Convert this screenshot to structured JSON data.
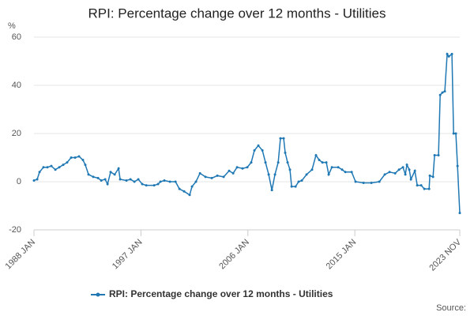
{
  "chart_data": {
    "type": "line",
    "title": "RPI: Percentage change over 12 months - Utilities",
    "y_label": "%",
    "source": "Source:",
    "x": [
      1988.0,
      1988.27,
      1988.47,
      1988.8,
      1989.13,
      1989.46,
      1989.8,
      1990.13,
      1990.46,
      1990.79,
      1991.13,
      1991.46,
      1991.79,
      1992.12,
      1992.32,
      1992.59,
      1992.99,
      1993.39,
      1993.66,
      1993.99,
      1994.19,
      1994.45,
      1994.79,
      1995.12,
      1995.25,
      1995.78,
      1996.12,
      1996.45,
      1996.78,
      1997.11,
      1997.45,
      1998.11,
      1998.44,
      1998.64,
      1998.97,
      1999.44,
      1999.91,
      2000.24,
      2000.63,
      2001.1,
      2001.3,
      2001.63,
      2001.97,
      2002.43,
      2002.96,
      2003.43,
      2003.96,
      2004.42,
      2004.76,
      2005.09,
      2005.55,
      2005.95,
      2006.28,
      2006.55,
      2006.88,
      2007.22,
      2007.48,
      2007.75,
      2008.02,
      2008.28,
      2008.55,
      2008.74,
      2009.01,
      2009.14,
      2009.34,
      2009.54,
      2009.68,
      2010.01,
      2010.27,
      2010.54,
      2010.94,
      2011.4,
      2011.73,
      2012.0,
      2012.27,
      2012.6,
      2012.8,
      2013.07,
      2013.6,
      2013.93,
      2014.2,
      2014.73,
      2015.06,
      2015.73,
      2016.39,
      2017.06,
      2017.52,
      2017.92,
      2018.39,
      2018.72,
      2019.05,
      2019.25,
      2019.38,
      2019.58,
      2019.72,
      2020.05,
      2020.25,
      2020.58,
      2020.85,
      2021.25,
      2021.31,
      2021.58,
      2021.71,
      2022.04,
      2022.18,
      2022.37,
      2022.57,
      2022.77,
      2022.91,
      2023.17,
      2023.31,
      2023.5,
      2023.64,
      2023.83
    ],
    "series": [
      {
        "name": "RPI: Percentage change over 12 months - Utilities",
        "color": "#1f78b4",
        "values": [
          0.5,
          1,
          4,
          6,
          6,
          6.5,
          5,
          6,
          7,
          8,
          10,
          10,
          10.5,
          9,
          7,
          3,
          2,
          1.5,
          0.5,
          1,
          -1,
          4,
          3,
          5.5,
          1,
          0.5,
          1,
          0,
          1,
          -1,
          -1.5,
          -1.5,
          -1,
          0,
          0.5,
          0,
          0,
          -3,
          -4,
          -5.5,
          -2,
          0,
          3.5,
          2,
          1.5,
          2.5,
          2,
          4.5,
          3.5,
          6,
          5.5,
          6,
          8,
          13,
          15,
          13,
          8,
          3,
          -3.5,
          3,
          8,
          18,
          18,
          12,
          8,
          5,
          -2,
          -2,
          0,
          0.5,
          3,
          5,
          11,
          9,
          8,
          8,
          3,
          6,
          6,
          5,
          4,
          4,
          0,
          -0.5,
          -0.5,
          0,
          3,
          4,
          3.5,
          5,
          6,
          3,
          7,
          5,
          1,
          4.5,
          -1.5,
          -1.5,
          -3,
          -3,
          2.5,
          2,
          11,
          11,
          36,
          37,
          37.5,
          53,
          52,
          53,
          20,
          20,
          6.5,
          -13
        ]
      }
    ],
    "xlim": [
      1988,
      2023.83
    ],
    "xticks": [
      {
        "value": 1988,
        "label": "1988 JAN"
      },
      {
        "value": 1997,
        "label": "1997 JAN"
      },
      {
        "value": 2006,
        "label": "2006 JAN"
      },
      {
        "value": 2015,
        "label": "2015 JAN"
      },
      {
        "value": 2023.83,
        "label": "2023 NOV"
      }
    ],
    "ylim": [
      -20,
      60
    ],
    "yticks": [
      -20,
      0,
      20,
      40,
      60
    ],
    "grid": true,
    "legend": "bottom"
  }
}
